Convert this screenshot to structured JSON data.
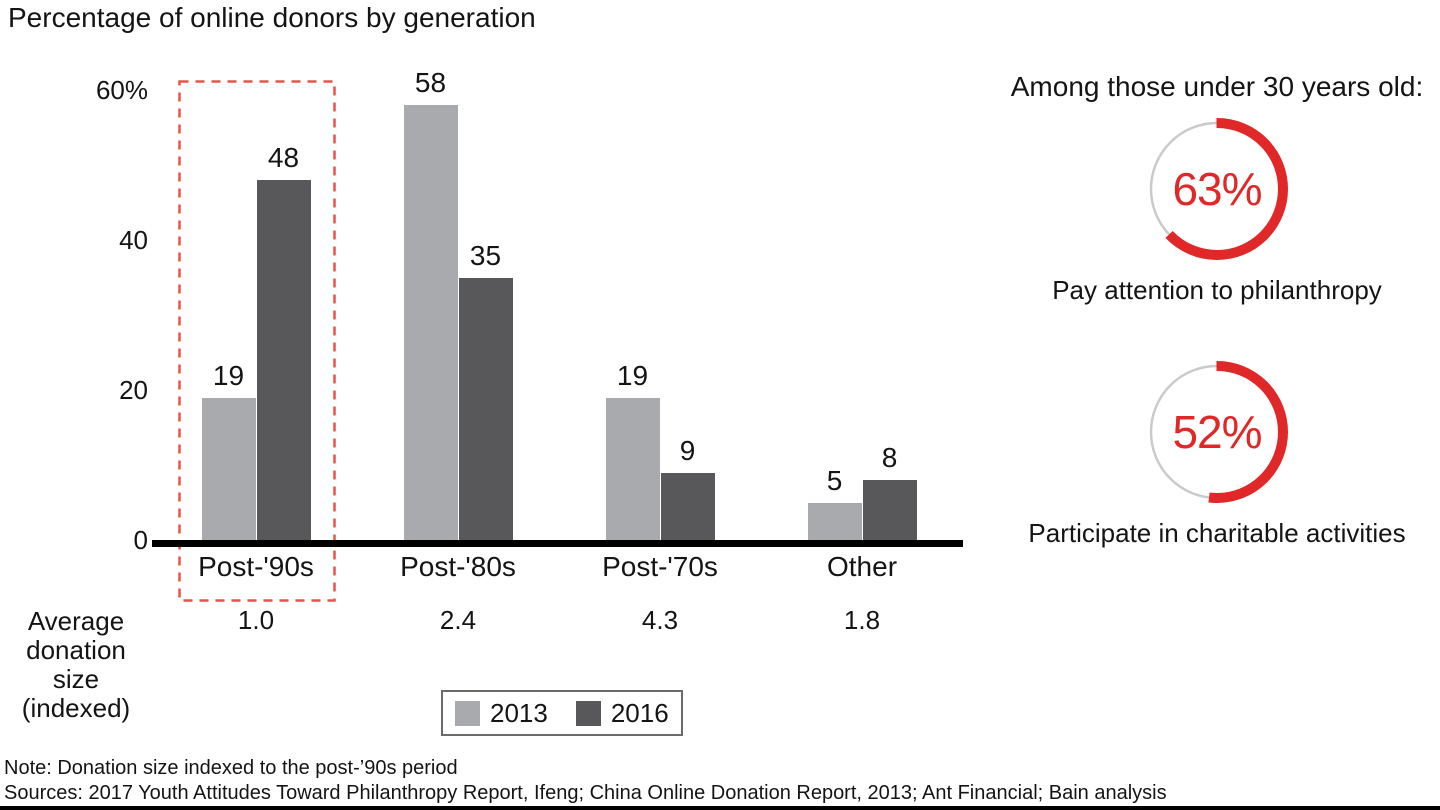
{
  "title": "Percentage of online donors by generation",
  "chart_data": {
    "type": "bar",
    "title": "Percentage of online donors by generation",
    "categories": [
      "Post-'90s",
      "Post-'80s",
      "Post-'70s",
      "Other"
    ],
    "series": [
      {
        "name": "2013",
        "values": [
          19,
          58,
          19,
          5
        ],
        "color": "#a9aaad"
      },
      {
        "name": "2016",
        "values": [
          48,
          35,
          9,
          8
        ],
        "color": "#58585a"
      }
    ],
    "ylim": [
      0,
      60
    ],
    "yticks": [
      {
        "value": 60,
        "label": "60%"
      },
      {
        "value": 40,
        "label": "40"
      },
      {
        "value": 20,
        "label": "20"
      },
      {
        "value": 0,
        "label": "0"
      }
    ],
    "grid": false,
    "legend_position": "bottom",
    "highlight": {
      "category": "Post-'90s",
      "style": "red dashed box"
    },
    "average_row": {
      "label_lines": [
        "Average",
        "donation size",
        "(indexed)"
      ],
      "values": [
        "1.0",
        "2.4",
        "4.3",
        "1.8"
      ]
    }
  },
  "right_panel": {
    "heading": "Among those under 30 years old:",
    "stats": [
      {
        "percent": 63,
        "display": "63%",
        "caption": "Pay attention to philanthropy"
      },
      {
        "percent": 52,
        "display": "52%",
        "caption": "Participate in charitable activities"
      }
    ]
  },
  "footer": {
    "note": "Note: Donation size indexed to the post-’90s period",
    "sources": "Sources: 2017 Youth Attitudes Toward Philanthropy Report, Ifeng; China Online Donation Report, 2013; Ant Financial; Bain analysis"
  },
  "colors": {
    "accent_red": "#e02828",
    "highlight_dash_red": "#ea5348",
    "bar_2013": "#a9aaad",
    "bar_2016": "#58585a",
    "donut_track": "#c9cacb",
    "axis_black": "#000000"
  }
}
